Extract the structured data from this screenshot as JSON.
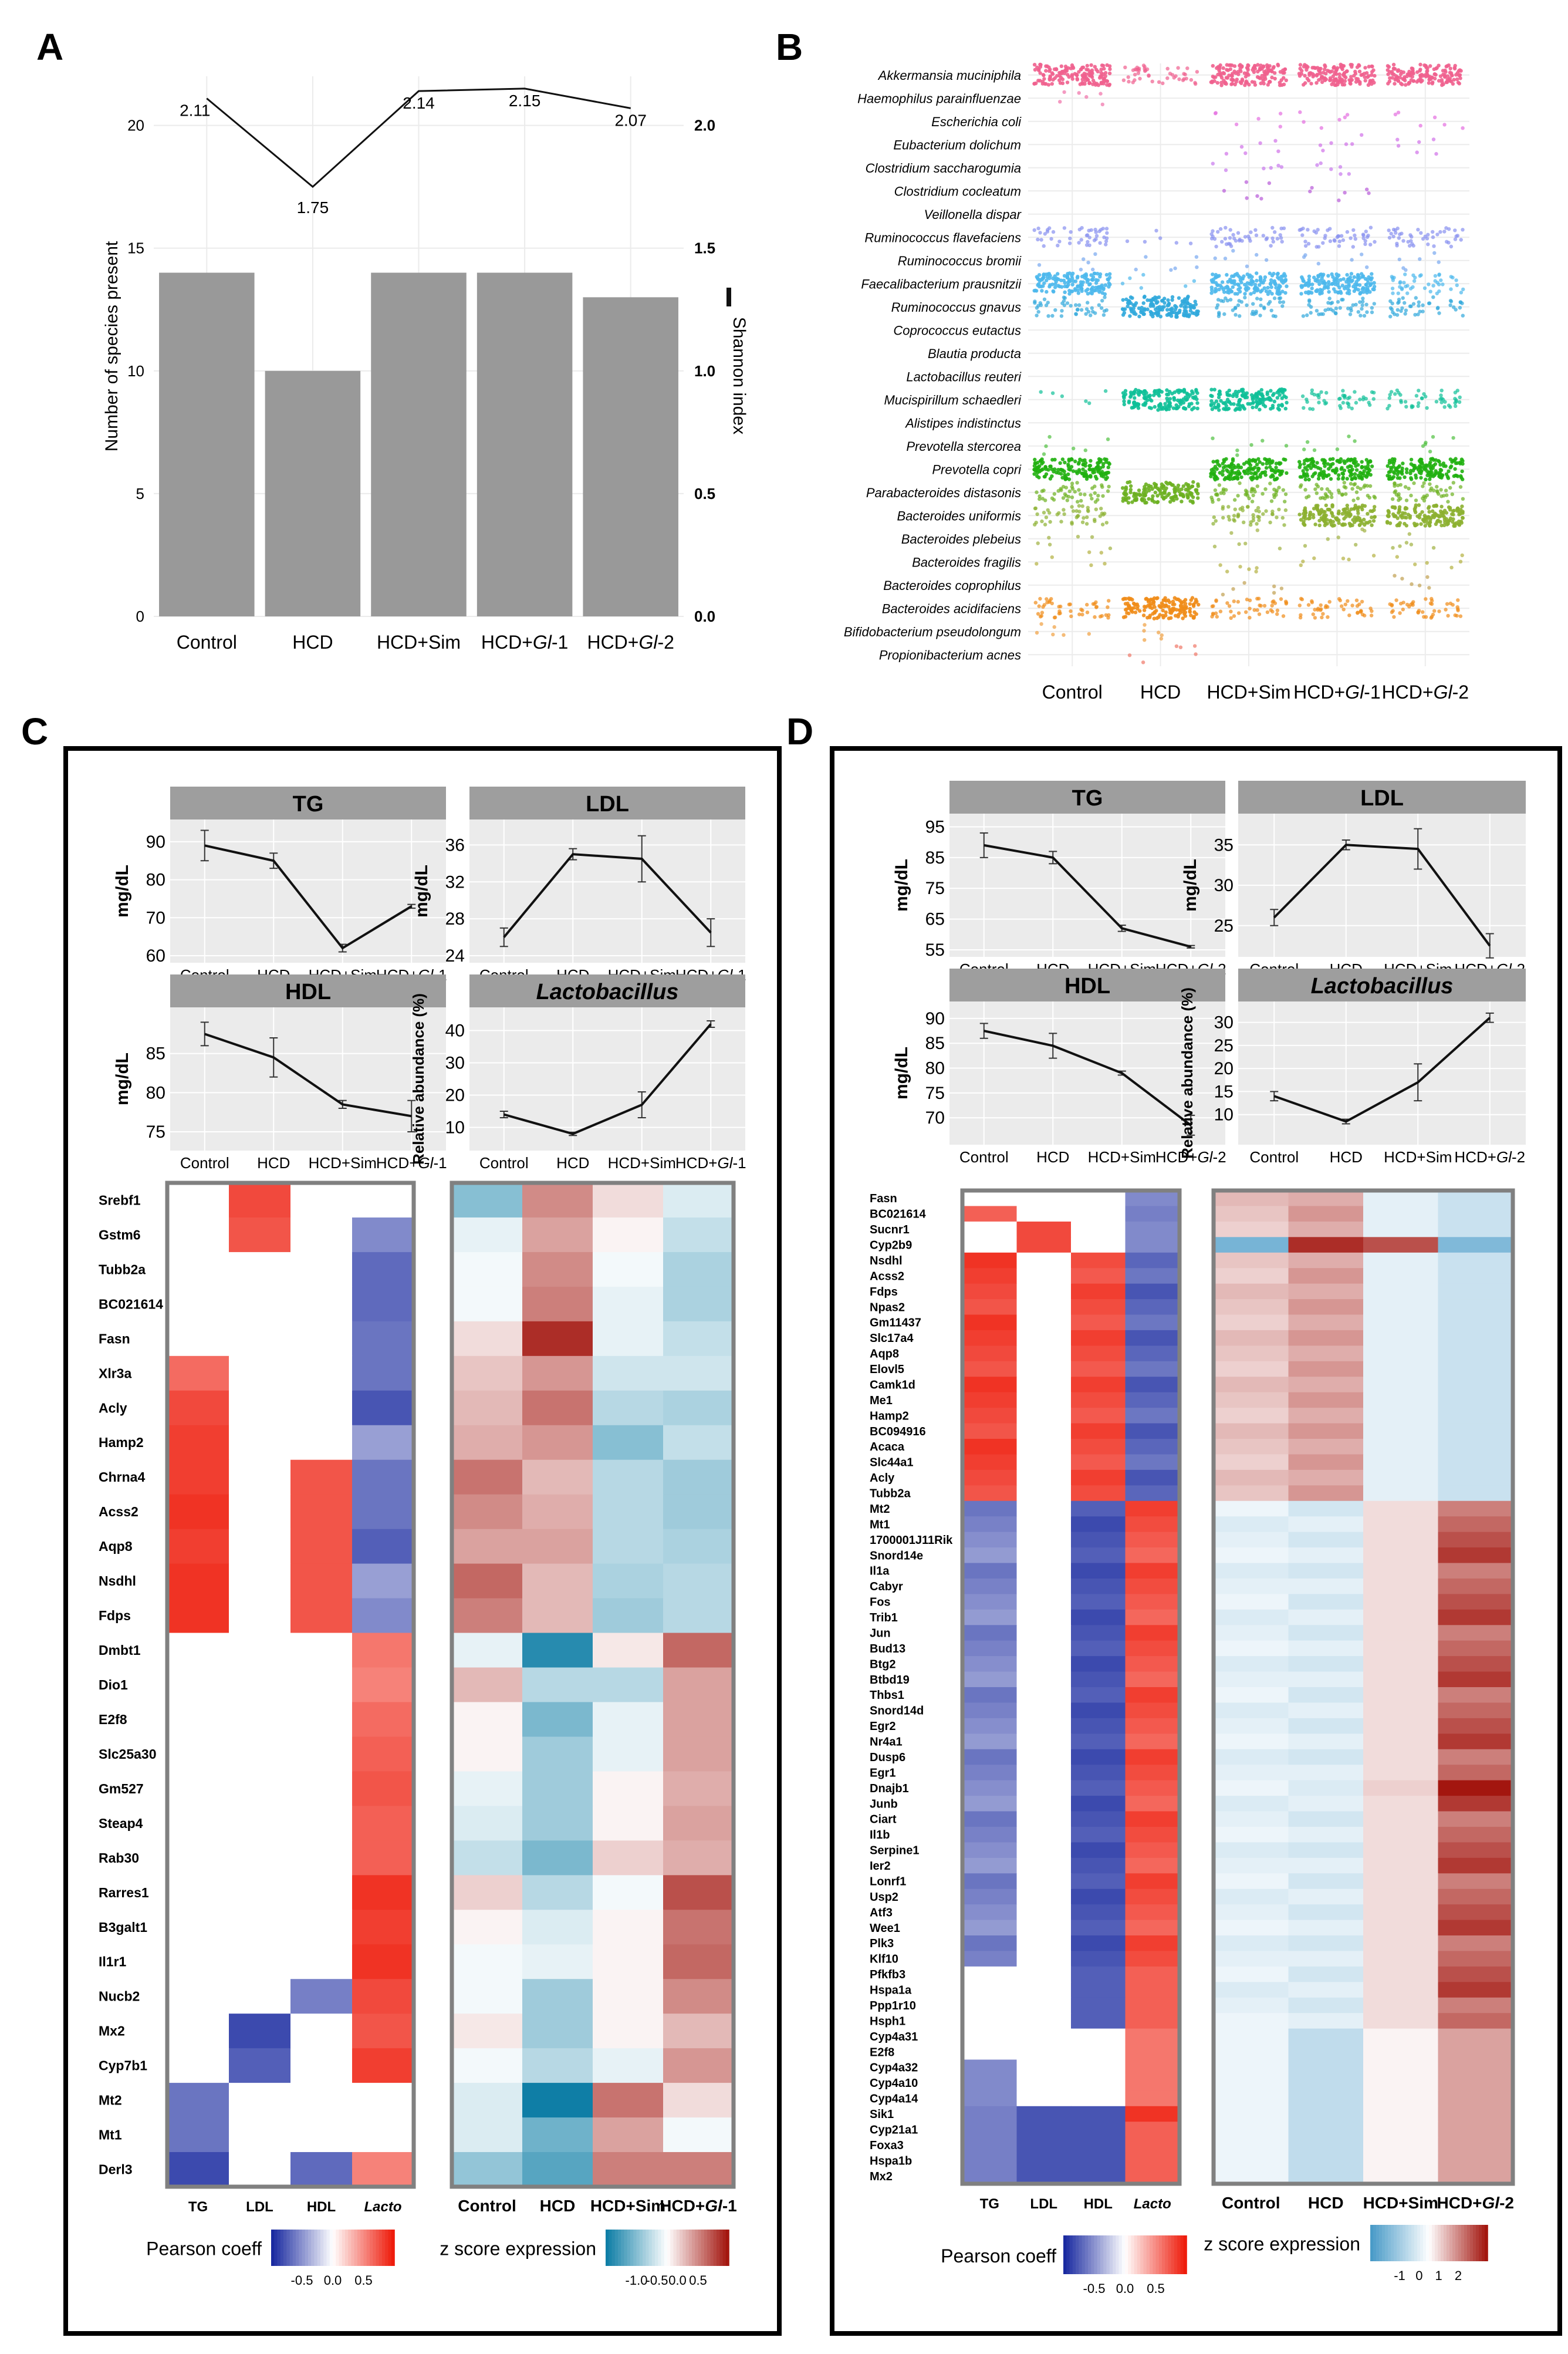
{
  "panels": {
    "A": "A",
    "B": "B",
    "C": "C",
    "D": "D"
  },
  "colors": {
    "bar": "#999999",
    "panel_bg": "#ebebeb",
    "strip_bg": "#9e9e9e",
    "heat_border": "#808080",
    "pearson_low": "#1a2aa0",
    "pearson_high": "#ee1c0c",
    "z_low": "#0f7ea6",
    "z_high": "#a3160f"
  },
  "chart_data": [
    {
      "id": "A",
      "type": "bar",
      "categories": [
        "Control",
        "HCD",
        "HCD+Sim",
        "HCD+Gl-1",
        "HCD+Gl-2"
      ],
      "category_labels": [
        [
          "Control",
          ""
        ],
        [
          "HCD",
          ""
        ],
        [
          "HCD+Sim",
          ""
        ],
        [
          "HCD+",
          "Gl",
          "-1"
        ],
        [
          "HCD+",
          "Gl",
          "-2"
        ]
      ],
      "values": [
        14,
        10,
        14,
        14,
        13
      ],
      "ylabel": "Number of species present",
      "ylim": [
        0,
        22
      ],
      "yticks": [
        0,
        5,
        10,
        15,
        20
      ],
      "y2label": "Shannon index",
      "y2lim": [
        0,
        2.2
      ],
      "y2ticks": [
        "0.0",
        "0.5",
        "1.0",
        "1.5",
        "2.0"
      ],
      "line": {
        "name": "Shannon index",
        "values": [
          2.11,
          1.75,
          2.14,
          2.15,
          2.07
        ],
        "labels": [
          "2.11",
          "1.75",
          "2.14",
          "2.15",
          "2.07"
        ]
      }
    },
    {
      "id": "B",
      "type": "scatter",
      "categories": [
        "Control",
        "HCD",
        "HCD+Sim",
        "HCD+Gl-1",
        "HCD+Gl-2"
      ],
      "species": [
        "Akkermansia muciniphila",
        "Haemophilus parainfluenzae",
        "Escherichia coli",
        "Eubacterium dolichum",
        "Clostridium saccharogumia",
        "Clostridium cocleatum",
        "Veillonella dispar",
        "Ruminococcus flavefaciens",
        "Ruminococcus bromii",
        "Faecalibacterium prausnitzii",
        "Ruminococcus gnavus",
        "Coprococcus eutactus",
        "Blautia producta",
        "Lactobacillus reuteri",
        "Mucispirillum schaedleri",
        "Alistipes indistinctus",
        "Prevotella stercorea",
        "Prevotella copri",
        "Parabacteroides distasonis",
        "Bacteroides uniformis",
        "Bacteroides plebeius",
        "Bacteroides fragilis",
        "Bacteroides coprophilus",
        "Bacteroides acidifaciens",
        "Bifidobacterium pseudolongum",
        "Propionibacterium acnes"
      ],
      "species_colors": [
        "#f0608e",
        "#f070a8",
        "#e46ee0",
        "#d070e8",
        "#c878ec",
        "#b85ad8",
        "#a080f0",
        "#8890f0",
        "#78a8f0",
        "#4cb8ec",
        "#30a8dc",
        "#38c0d0",
        "#30c8c0",
        "#30c8a8",
        "#10c098",
        "#40c870",
        "#50c040",
        "#20b010",
        "#6cb020",
        "#8cb030",
        "#a0b040",
        "#b4b040",
        "#c0a050",
        "#f08c18",
        "#f0a040",
        "#f07868"
      ],
      "abundance": [
        [
          3,
          1,
          0,
          0,
          0,
          0,
          0,
          2,
          1,
          3,
          2,
          0,
          0,
          0,
          1,
          0,
          1,
          3,
          2,
          2,
          1,
          1,
          0,
          2,
          1,
          0
        ],
        [
          2,
          0,
          0,
          0,
          0,
          0,
          0,
          1,
          1,
          1,
          3,
          0,
          0,
          0,
          3,
          0,
          0,
          0,
          3,
          0,
          0,
          0,
          0,
          3,
          1,
          1
        ],
        [
          3,
          0,
          1,
          1,
          1,
          1,
          0,
          2,
          1,
          3,
          2,
          0,
          0,
          0,
          3,
          0,
          1,
          3,
          2,
          2,
          1,
          1,
          1,
          2,
          0,
          0
        ],
        [
          3,
          0,
          1,
          1,
          1,
          1,
          0,
          2,
          1,
          3,
          2,
          0,
          0,
          0,
          2,
          0,
          1,
          3,
          2,
          3,
          1,
          1,
          0,
          2,
          0,
          0
        ],
        [
          3,
          0,
          1,
          1,
          0,
          0,
          0,
          2,
          1,
          2,
          2,
          0,
          0,
          0,
          2,
          0,
          1,
          3,
          2,
          3,
          1,
          1,
          1,
          2,
          0,
          0
        ]
      ],
      "category_labels": [
        [
          "Control",
          ""
        ],
        [
          "HCD",
          ""
        ],
        [
          "HCD+Sim",
          ""
        ],
        [
          "HCD+",
          "Gl",
          "-1"
        ],
        [
          "HCD+",
          "Gl",
          "-2"
        ]
      ]
    },
    {
      "id": "C",
      "type": "line",
      "subplots": [
        {
          "title": "TG",
          "ylabel": "mg/dL",
          "ylim": [
            60,
            94
          ],
          "yticks": [
            60,
            70,
            80,
            90
          ],
          "values": [
            89,
            85,
            62,
            73
          ],
          "errors": [
            4,
            2,
            1,
            0.5
          ],
          "xlabels": [
            [
              "Control",
              ""
            ],
            [
              "HCD",
              ""
            ],
            [
              "HCD+Sim",
              ""
            ],
            [
              "HCD+",
              "Gl",
              "-1"
            ]
          ]
        },
        {
          "title": "LDL",
          "ylabel": "mg/dL",
          "ylim": [
            24,
            38
          ],
          "yticks": [
            24,
            28,
            32,
            36
          ],
          "values": [
            26,
            35,
            34.5,
            26.5
          ],
          "errors": [
            1,
            0.6,
            2.5,
            1.5
          ],
          "xlabels": [
            [
              "Control",
              ""
            ],
            [
              "HCD",
              ""
            ],
            [
              "HCD+Sim",
              ""
            ],
            [
              "HCD+",
              "Gl",
              "-1"
            ]
          ]
        },
        {
          "title": "HDL",
          "ylabel": "mg/dL",
          "ylim": [
            73.5,
            90
          ],
          "yticks": [
            75,
            80,
            85
          ],
          "values": [
            87.5,
            84.5,
            78.5,
            77
          ],
          "errors": [
            1.5,
            2.5,
            0.5,
            2
          ],
          "xlabels": [
            [
              "Control",
              ""
            ],
            [
              "HCD",
              ""
            ],
            [
              "HCD+Sim",
              ""
            ],
            [
              "HCD+",
              "Gl",
              "-1"
            ]
          ]
        },
        {
          "title": "Lactobacillus",
          "ylabel": "Relative abundance (%)",
          "ylim": [
            5,
            45
          ],
          "yticks": [
            10,
            20,
            30,
            40
          ],
          "values": [
            14,
            8,
            17,
            42
          ],
          "errors": [
            1,
            0.5,
            4,
            1
          ],
          "xlabels": [
            [
              "Control",
              ""
            ],
            [
              "HCD",
              ""
            ],
            [
              "HCD+Sim",
              ""
            ],
            [
              "HCD+",
              "Gl",
              "-1"
            ]
          ]
        }
      ],
      "genes": [
        "Srebf1",
        "Gstm6",
        "Tubb2a",
        "BC021614",
        "Fasn",
        "Xlr3a",
        "Acly",
        "Hamp2",
        "Chrna4",
        "Acss2",
        "Aqp8",
        "Nsdhl",
        "Fdps",
        "Dmbt1",
        "Dio1",
        "E2f8",
        "Slc25a30",
        "Gm527",
        "Steap4",
        "Rab30",
        "Rarres1",
        "B3galt1",
        "Il1r1",
        "Nucb2",
        "Mx2",
        "Cyp7b1",
        "Mt2",
        "Mt1",
        "Derl3"
      ],
      "pearson_columns": [
        [
          "TG",
          ""
        ],
        [
          "LDL",
          ""
        ],
        [
          "HDL",
          ""
        ],
        [
          "",
          "Lacto"
        ]
      ],
      "pearson": [
        [
          0,
          0.8,
          0,
          0
        ],
        [
          0,
          0.75,
          0,
          -0.55
        ],
        [
          0,
          0,
          0,
          -0.7
        ],
        [
          0,
          0,
          0,
          -0.7
        ],
        [
          0,
          0,
          0,
          -0.65
        ],
        [
          0.65,
          0,
          0,
          -0.65
        ],
        [
          0.8,
          0,
          0,
          -0.8
        ],
        [
          0.85,
          0,
          0,
          -0.45
        ],
        [
          0.85,
          0,
          0.75,
          -0.65
        ],
        [
          0.9,
          0,
          0.75,
          -0.65
        ],
        [
          0.85,
          0,
          0.75,
          -0.75
        ],
        [
          0.9,
          0,
          0.75,
          -0.45
        ],
        [
          0.9,
          0,
          0.75,
          -0.55
        ],
        [
          0,
          0,
          0,
          0.6
        ],
        [
          0,
          0,
          0,
          0.55
        ],
        [
          0,
          0,
          0,
          0.65
        ],
        [
          0,
          0,
          0,
          0.7
        ],
        [
          0,
          0,
          0,
          0.75
        ],
        [
          0,
          0,
          0,
          0.7
        ],
        [
          0,
          0,
          0,
          0.7
        ],
        [
          0,
          0,
          0,
          0.9
        ],
        [
          0,
          0,
          0,
          0.85
        ],
        [
          0,
          0,
          0,
          0.9
        ],
        [
          0,
          0,
          -0.6,
          0.8
        ],
        [
          0,
          -0.85,
          0,
          0.75
        ],
        [
          0,
          -0.75,
          0,
          0.85
        ],
        [
          -0.65,
          0,
          0,
          0
        ],
        [
          -0.65,
          0,
          0,
          0
        ],
        [
          -0.85,
          0,
          -0.7,
          0.55
        ]
      ],
      "z_columns": [
        [
          "Control",
          ""
        ],
        [
          "HCD",
          ""
        ],
        [
          "HCD+Sim",
          ""
        ],
        [
          "HCD+",
          "Gl",
          "-1"
        ]
      ],
      "zscore": [
        [
          -0.5,
          0.5,
          0.15,
          -0.15
        ],
        [
          -0.1,
          0.4,
          0.05,
          -0.25
        ],
        [
          -0.05,
          0.5,
          -0.05,
          -0.35
        ],
        [
          -0.05,
          0.55,
          -0.1,
          -0.35
        ],
        [
          0.15,
          0.9,
          -0.1,
          -0.25
        ],
        [
          0.25,
          0.45,
          -0.2,
          -0.2
        ],
        [
          0.3,
          0.6,
          -0.3,
          -0.35
        ],
        [
          0.35,
          0.45,
          -0.5,
          -0.25
        ],
        [
          0.6,
          0.3,
          -0.3,
          -0.4
        ],
        [
          0.5,
          0.35,
          -0.3,
          -0.4
        ],
        [
          0.4,
          0.4,
          -0.3,
          -0.35
        ],
        [
          0.65,
          0.3,
          -0.35,
          -0.3
        ],
        [
          0.55,
          0.3,
          -0.4,
          -0.3
        ],
        [
          -0.1,
          -0.9,
          0.1,
          0.65
        ],
        [
          0.3,
          -0.3,
          -0.3,
          0.4
        ],
        [
          0.05,
          -0.55,
          -0.1,
          0.4
        ],
        [
          0.05,
          -0.4,
          -0.1,
          0.4
        ],
        [
          -0.1,
          -0.4,
          0.05,
          0.35
        ],
        [
          -0.15,
          -0.4,
          0.05,
          0.4
        ],
        [
          -0.25,
          -0.55,
          0.2,
          0.35
        ],
        [
          0.2,
          -0.3,
          -0.05,
          0.75
        ],
        [
          0.05,
          -0.15,
          0.05,
          0.6
        ],
        [
          -0.05,
          -0.1,
          0.05,
          0.65
        ],
        [
          -0.05,
          -0.4,
          0.05,
          0.5
        ],
        [
          0.1,
          -0.4,
          0.05,
          0.3
        ],
        [
          -0.05,
          -0.3,
          -0.1,
          0.45
        ],
        [
          -0.15,
          -1.0,
          0.6,
          0.15
        ],
        [
          -0.15,
          -0.6,
          0.4,
          -0.05
        ],
        [
          -0.45,
          -0.7,
          0.55,
          0.55
        ]
      ],
      "legend": {
        "pearson_title": "Pearson coeff",
        "pearson_ticks": [
          "-0.5",
          "0.0",
          "0.5"
        ],
        "z_title": "z score expression",
        "z_ticks": [
          "-1.0",
          "-0.5",
          "0.0",
          "0.5"
        ]
      }
    },
    {
      "id": "D",
      "type": "line",
      "subplots": [
        {
          "title": "TG",
          "ylabel": "mg/dL",
          "ylim": [
            55,
            97
          ],
          "yticks": [
            55,
            65,
            75,
            85,
            95
          ],
          "values": [
            89,
            85,
            62,
            56
          ],
          "errors": [
            4,
            2,
            1,
            0.4
          ],
          "xlabels": [
            [
              "Control",
              ""
            ],
            [
              "HCD",
              ""
            ],
            [
              "HCD+Sim",
              ""
            ],
            [
              "HCD+",
              "Gl",
              "-2"
            ]
          ]
        },
        {
          "title": "LDL",
          "ylabel": "mg/dL",
          "ylim": [
            22,
            38
          ],
          "yticks": [
            25,
            30,
            35
          ],
          "values": [
            26,
            35,
            34.5,
            22.5
          ],
          "errors": [
            1,
            0.6,
            2.5,
            1.5
          ],
          "xlabels": [
            [
              "Control",
              ""
            ],
            [
              "HCD",
              ""
            ],
            [
              "HCD+Sim",
              ""
            ],
            [
              "HCD+",
              "Gl",
              "-2"
            ]
          ]
        },
        {
          "title": "HDL",
          "ylabel": "mg/dL",
          "ylim": [
            66,
            92
          ],
          "yticks": [
            70,
            75,
            80,
            85,
            90
          ],
          "values": [
            87.5,
            84.5,
            79,
            68.5
          ],
          "errors": [
            1.5,
            2.5,
            0.4,
            2
          ],
          "xlabels": [
            [
              "Control",
              ""
            ],
            [
              "HCD",
              ""
            ],
            [
              "HCD+Sim",
              ""
            ],
            [
              "HCD+",
              "Gl",
              "-2"
            ]
          ]
        },
        {
          "title": "Lactobacillus",
          "ylabel": "Relative abundance (%)",
          "ylim": [
            5,
            33
          ],
          "yticks": [
            10,
            15,
            20,
            25,
            30
          ],
          "values": [
            14,
            8.5,
            17,
            31
          ],
          "errors": [
            1,
            0.5,
            4,
            1
          ],
          "xlabels": [
            [
              "Control",
              ""
            ],
            [
              "HCD",
              ""
            ],
            [
              "HCD+Sim",
              ""
            ],
            [
              "HCD+",
              "Gl",
              "-2"
            ]
          ]
        }
      ],
      "genes": [
        "Fasn",
        "BC021614",
        "Sucnr1",
        "Cyp2b9",
        "Nsdhl",
        "Acss2",
        "Fdps",
        "Npas2",
        "Gm11437",
        "Slc17a4",
        "Aqp8",
        "Elovl5",
        "Camk1d",
        "Me1",
        "Hamp2",
        "BC094916",
        "Acaca",
        "Slc44a1",
        "Acly",
        "Tubb2a",
        "Mt2",
        "Mt1",
        "1700001J11Rik",
        "Snord14e",
        "Il1a",
        "Cabyr",
        "Fos",
        "Trib1",
        "Jun",
        "Bud13",
        "Btg2",
        "Btbd19",
        "Thbs1",
        "Snord14d",
        "Egr2",
        "Nr4a1",
        "Dusp6",
        "Egr1",
        "Dnajb1",
        "Junb",
        "Ciart",
        "Il1b",
        "Serpine1",
        "Ier2",
        "Lonrf1",
        "Usp2",
        "Atf3",
        "Wee1",
        "Plk3",
        "Klf10",
        "Pfkfb3",
        "Hspa1a",
        "Ppp1r10",
        "Hsph1",
        "Cyp4a31",
        "E2f8",
        "Cyp4a32",
        "Cyp4a10",
        "Cyp4a14",
        "Sik1",
        "Cyp21a1",
        "Foxa3",
        "Hspa1b",
        "Mx2"
      ],
      "pearson_columns": [
        [
          "TG",
          ""
        ],
        [
          "LDL",
          ""
        ],
        [
          "HDL",
          ""
        ],
        [
          "",
          "Lacto"
        ]
      ],
      "legend": {
        "pearson_title": "Pearson coeff",
        "pearson_ticks": [
          "-0.5",
          "0.0",
          "0.5"
        ],
        "z_title": "z score expression",
        "z_ticks": [
          "-1",
          "0",
          "1",
          "2"
        ]
      }
    }
  ]
}
